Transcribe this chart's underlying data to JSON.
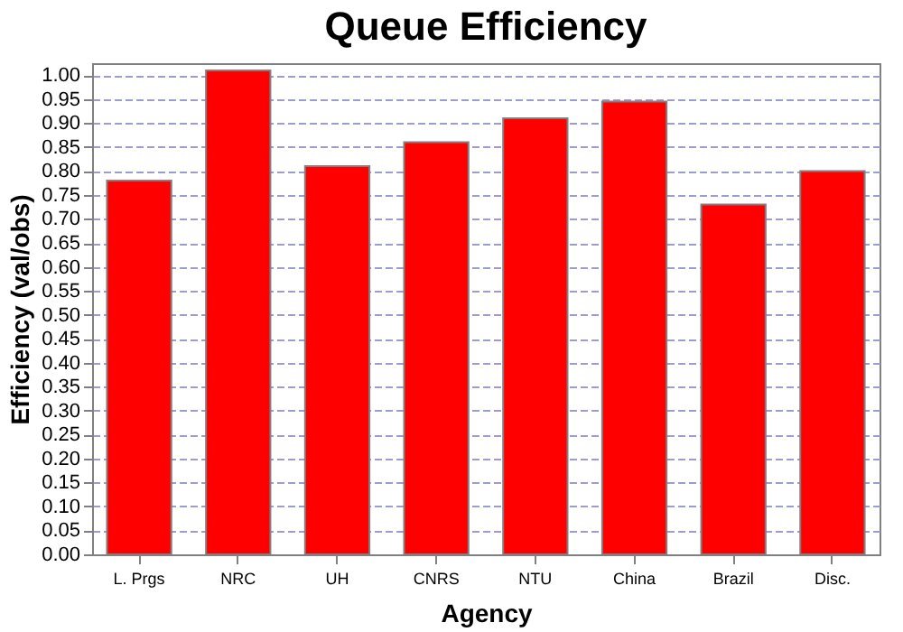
{
  "chart_data": {
    "type": "bar",
    "title": "Queue Efficiency",
    "xlabel": "Agency",
    "ylabel": "Efficiency (val/obs)",
    "categories": [
      "L. Prgs",
      "NRC",
      "UH",
      "CNRS",
      "NTU",
      "China",
      "Brazil",
      "Disc."
    ],
    "values": [
      0.78,
      1.01,
      0.81,
      0.86,
      0.91,
      0.945,
      0.73,
      0.8
    ],
    "color": "#ff0000",
    "ylim": [
      0,
      1.025
    ],
    "yticks": [
      {
        "value": 0,
        "label": "0.00"
      },
      {
        "value": 0.05,
        "label": "0.05"
      },
      {
        "value": 0.1,
        "label": "0.10"
      },
      {
        "value": 0.15,
        "label": "0.15"
      },
      {
        "value": 0.2,
        "label": "0.20"
      },
      {
        "value": 0.25,
        "label": "0.25"
      },
      {
        "value": 0.3,
        "label": "0.30"
      },
      {
        "value": 0.35,
        "label": "0.35"
      },
      {
        "value": 0.4,
        "label": "0.40"
      },
      {
        "value": 0.45,
        "label": "0.45"
      },
      {
        "value": 0.5,
        "label": "0.50"
      },
      {
        "value": 0.55,
        "label": "0.55"
      },
      {
        "value": 0.6,
        "label": "0.60"
      },
      {
        "value": 0.65,
        "label": "0.65"
      },
      {
        "value": 0.7,
        "label": "0.70"
      },
      {
        "value": 0.75,
        "label": "0.75"
      },
      {
        "value": 0.8,
        "label": "0.80"
      },
      {
        "value": 0.85,
        "label": "0.85"
      },
      {
        "value": 0.9,
        "label": "0.90"
      },
      {
        "value": 0.95,
        "label": "0.95"
      },
      {
        "value": 1,
        "label": "1.00"
      }
    ],
    "grid": "y"
  }
}
